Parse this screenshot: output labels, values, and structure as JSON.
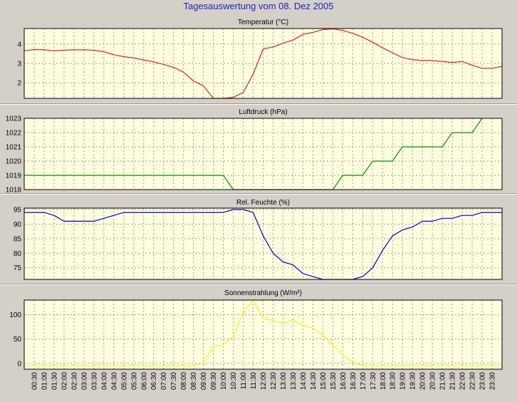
{
  "page": {
    "title": "Tagesauswertung vom 08. Dez 2005"
  },
  "colors": {
    "background": "#d4d0c8",
    "plot_background": "#ffffe0",
    "title": "#2020c8",
    "temperature": "#e02020",
    "pressure": "#009000",
    "humidity": "#0000d0",
    "radiation": "#f0f020"
  },
  "time_labels": [
    "00:30",
    "01:00",
    "01:30",
    "02:00",
    "02:30",
    "03:00",
    "03:30",
    "04:00",
    "04:30",
    "05:00",
    "05:30",
    "06:00",
    "06:30",
    "07:00",
    "07:30",
    "08:00",
    "08:30",
    "09:00",
    "09:30",
    "10:00",
    "10:30",
    "11:00",
    "11:30",
    "12:00",
    "12:30",
    "13:00",
    "13:30",
    "14:00",
    "14:30",
    "15:00",
    "15:30",
    "16:00",
    "16:30",
    "17:00",
    "17:30",
    "18:00",
    "18:30",
    "19:00",
    "19:30",
    "20:00",
    "20:30",
    "21:00",
    "21:30",
    "22:00",
    "22:30",
    "23:00",
    "23:30"
  ],
  "chart_data": [
    {
      "type": "line",
      "title": "Temperatur (°C)",
      "ylim": [
        1.2,
        4.8
      ],
      "yticks": [
        "2",
        "3",
        "4"
      ],
      "grid": true,
      "x": [
        "00:00",
        "00:30",
        "01:00",
        "01:30",
        "02:00",
        "02:30",
        "03:00",
        "03:30",
        "04:00",
        "04:30",
        "05:00",
        "05:30",
        "06:00",
        "06:30",
        "07:00",
        "07:30",
        "08:00",
        "08:30",
        "09:00",
        "09:30",
        "10:00",
        "10:30",
        "11:00",
        "11:30",
        "12:00",
        "12:30",
        "13:00",
        "13:30",
        "14:00",
        "14:30",
        "15:00",
        "15:30",
        "16:00",
        "16:30",
        "17:00",
        "17:30",
        "18:00",
        "18:30",
        "19:00",
        "19:30",
        "20:00",
        "20:30",
        "21:00",
        "21:30",
        "22:00",
        "22:30",
        "23:00",
        "23:30",
        "24:00"
      ],
      "series": [
        {
          "values": [
            3.65,
            3.72,
            3.7,
            3.65,
            3.68,
            3.7,
            3.7,
            3.68,
            3.6,
            3.45,
            3.35,
            3.28,
            3.18,
            3.08,
            2.95,
            2.8,
            2.55,
            2.1,
            1.85,
            1.2,
            1.2,
            1.25,
            1.5,
            2.45,
            3.75,
            3.85,
            4.05,
            4.2,
            4.5,
            4.6,
            4.75,
            4.78,
            4.7,
            4.55,
            4.35,
            4.1,
            3.8,
            3.55,
            3.3,
            3.2,
            3.15,
            3.15,
            3.1,
            3.05,
            3.1,
            2.9,
            2.75,
            2.75,
            2.85
          ]
        }
      ]
    },
    {
      "type": "line",
      "title": "Luftdruck (hPa)",
      "ylim": [
        1018,
        1023
      ],
      "yticks": [
        "1018",
        "1019",
        "1020",
        "1021",
        "1022",
        "1023"
      ],
      "grid": true,
      "x": [
        "00:00",
        "10:00",
        "10:30",
        "15:30",
        "16:00",
        "16:30",
        "17:00",
        "17:30",
        "18:00",
        "18:30",
        "19:00",
        "19:30",
        "21:00",
        "21:30",
        "22:00",
        "22:30",
        "23:00"
      ],
      "series": [
        {
          "values": [
            1019,
            1019,
            1018,
            1018,
            1019,
            1019,
            1019,
            1020,
            1020,
            1020,
            1021,
            1021,
            1021,
            1022,
            1022,
            1022,
            1023
          ]
        }
      ]
    },
    {
      "type": "line",
      "title": "Rel. Feuchte (%)",
      "ylim": [
        71,
        95.5
      ],
      "yticks": [
        "75",
        "80",
        "85",
        "90",
        "95"
      ],
      "grid": true,
      "x": [
        "00:00",
        "00:30",
        "01:00",
        "01:30",
        "02:00",
        "02:30",
        "03:00",
        "03:30",
        "04:00",
        "04:30",
        "05:00",
        "05:30",
        "06:00",
        "06:30",
        "07:00",
        "07:30",
        "08:00",
        "08:30",
        "09:00",
        "09:30",
        "10:00",
        "10:30",
        "11:00",
        "11:30",
        "12:00",
        "12:30",
        "13:00",
        "13:30",
        "14:00",
        "14:30",
        "15:00",
        "15:30",
        "16:00",
        "16:30",
        "17:00",
        "17:30",
        "18:00",
        "18:30",
        "19:00",
        "19:30",
        "20:00",
        "20:30",
        "21:00",
        "21:30",
        "22:00",
        "22:30",
        "23:00",
        "23:30",
        "24:00"
      ],
      "series": [
        {
          "values": [
            94,
            94,
            94,
            93,
            91,
            91,
            91,
            91,
            92,
            93,
            94,
            94,
            94,
            94,
            94,
            94,
            94,
            94,
            94,
            94,
            94,
            95,
            95,
            94,
            86,
            80,
            77,
            76,
            73,
            72,
            71,
            71,
            71,
            71,
            72,
            75,
            81,
            86,
            88,
            89,
            91,
            91,
            92,
            92,
            93,
            93,
            94,
            94,
            94
          ]
        }
      ]
    },
    {
      "type": "line",
      "title": "Sonnenstrahlung (W/m²)",
      "ylim": [
        -12,
        130
      ],
      "yticks": [
        "0",
        "50",
        "100"
      ],
      "grid": true,
      "x": [
        "00:00",
        "00:30",
        "01:00",
        "01:30",
        "02:00",
        "02:30",
        "03:00",
        "03:30",
        "04:00",
        "04:30",
        "05:00",
        "05:30",
        "06:00",
        "06:30",
        "07:00",
        "07:30",
        "08:00",
        "08:30",
        "09:00",
        "09:30",
        "10:00",
        "10:30",
        "11:00",
        "11:30",
        "12:00",
        "12:30",
        "13:00",
        "13:30",
        "14:00",
        "14:30",
        "15:00",
        "15:30",
        "16:00",
        "16:30",
        "17:00",
        "17:30",
        "18:00",
        "18:30",
        "19:00",
        "19:30",
        "20:00",
        "20:30",
        "21:00",
        "21:30",
        "22:00",
        "22:30",
        "23:00",
        "23:30",
        "24:00"
      ],
      "series": [
        {
          "values": [
            -5,
            -5,
            -5,
            -5,
            -5,
            -5,
            -5,
            -5,
            -5,
            -5,
            -5,
            -5,
            -5,
            -5,
            -5,
            -5,
            -5,
            -5,
            0,
            35,
            38,
            55,
            105,
            130,
            92,
            88,
            82,
            90,
            78,
            72,
            58,
            38,
            18,
            2,
            -5,
            -5,
            -5,
            -5,
            -5,
            -5,
            -5,
            -5,
            -5,
            -5,
            -5,
            -5,
            -5,
            -5,
            -5
          ]
        }
      ]
    }
  ]
}
